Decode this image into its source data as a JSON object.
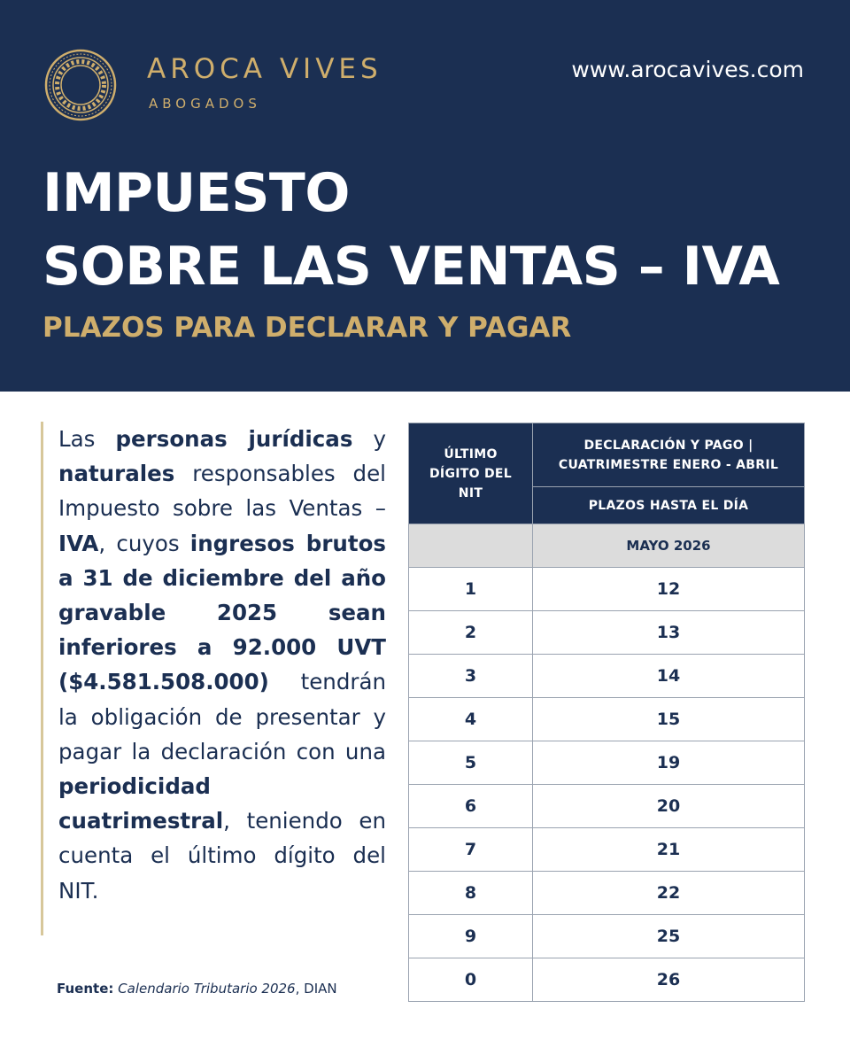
{
  "brand": {
    "name": "AROCA VIVES",
    "subtitle": "ABOGADOS",
    "website": "www.arocavives.com",
    "logo_icon": "greek-key-circle-emblem",
    "gold_color": "#cfae6c",
    "navy_color": "#1b2f52"
  },
  "title": {
    "line1": "IMPUESTO",
    "line2": "SOBRE LAS VENTAS – IVA",
    "subtitle": "PLAZOS PARA DECLARAR Y PAGAR"
  },
  "body": {
    "t1": "Las ",
    "b1": "personas jurídicas",
    "t2": " y ",
    "b2": "naturales",
    "t3": " responsables del Impuesto sobre las Ventas – ",
    "b3": "IVA",
    "t4": ", cuyos ",
    "b4": "ingresos brutos a 31 de diciembre del año gravable 2025 sean inferiores a 92.000 UVT ($4.581.508.000)",
    "t5": " tendrán la obligación de presentar y pagar la declaración con una ",
    "b5": "periodicidad cuatrimestral",
    "t6": ", teniendo en cuenta el último dígito del NIT."
  },
  "source": {
    "label": "Fuente:",
    "doc": "Calendario Tributario 2026",
    "org": ", DIAN"
  },
  "table": {
    "col1_header": "ÚLTIMO DÍGITO DEL NIT",
    "col2_header": "DECLARACIÓN Y PAGO | CUATRIMESTRE ENERO - ABRIL",
    "col2_subheader": "PLAZOS HASTA EL DÍA",
    "month": "MAYO 2026",
    "rows": [
      {
        "digit": "1",
        "day": "12"
      },
      {
        "digit": "2",
        "day": "13"
      },
      {
        "digit": "3",
        "day": "14"
      },
      {
        "digit": "4",
        "day": "15"
      },
      {
        "digit": "5",
        "day": "19"
      },
      {
        "digit": "6",
        "day": "20"
      },
      {
        "digit": "7",
        "day": "21"
      },
      {
        "digit": "8",
        "day": "22"
      },
      {
        "digit": "9",
        "day": "25"
      },
      {
        "digit": "0",
        "day": "26"
      }
    ]
  }
}
